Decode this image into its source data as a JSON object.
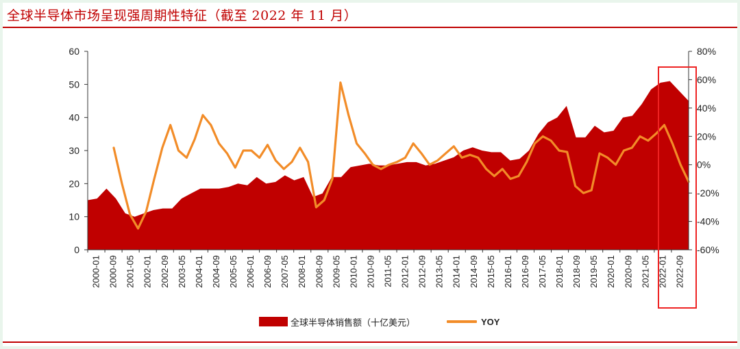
{
  "title": "全球半导体市场呈现强周期性特征（截至 2022 年 11 月）",
  "colors": {
    "area": "#c00000",
    "line": "#f28c28",
    "highlight": "#ee2222",
    "title": "#c00000"
  },
  "chart_data": {
    "type": "area",
    "title": "全球半导体市场呈现强周期性特征（截至 2022 年 11 月）",
    "left_axis": {
      "ylim": [
        0,
        60
      ],
      "ticks": [
        "0",
        "10",
        "20",
        "30",
        "40",
        "50",
        "60"
      ]
    },
    "right_axis": {
      "ylim": [
        -60,
        80
      ],
      "ticks": [
        "-60%",
        "-40%",
        "-20%",
        "0%",
        "20%",
        "40%",
        "60%",
        "80%"
      ]
    },
    "x_tick_labels": [
      "2000-01",
      "2000-09",
      "2001-05",
      "2002-01",
      "2002-09",
      "2003-05",
      "2004-01",
      "2004-09",
      "2005-05",
      "2006-01",
      "2006-09",
      "2007-05",
      "2008-01",
      "2008-09",
      "2009-05",
      "2010-01",
      "2010-09",
      "2011-05",
      "2012-01",
      "2012-09",
      "2013-05",
      "2014-01",
      "2014-09",
      "2015-05",
      "2016-01",
      "2016-09",
      "2017-05",
      "2018-01",
      "2018-09",
      "2019-05",
      "2020-01",
      "2020-09",
      "2021-05",
      "2022-01",
      "2022-09"
    ],
    "legend": [
      {
        "name": "全球半导体销售额（十亿美元）",
        "kind": "area"
      },
      {
        "name": "YOY",
        "kind": "line"
      }
    ],
    "legend_position": "bottom",
    "series": [
      {
        "name": "全球半导体销售额（十亿美元）",
        "axis": "left",
        "kind": "area",
        "values": [
          15.0,
          15.5,
          18.5,
          15.5,
          11.0,
          10.0,
          11.0,
          12.0,
          12.5,
          12.5,
          15.5,
          17.0,
          18.5,
          18.5,
          18.5,
          19.0,
          20.0,
          19.5,
          22.0,
          20.0,
          20.5,
          22.5,
          21.0,
          22.0,
          16.0,
          17.0,
          22.0,
          22.0,
          25.0,
          25.5,
          26.0,
          25.5,
          25.5,
          26.0,
          26.5,
          26.5,
          25.5,
          26.0,
          27.0,
          28.0,
          30.0,
          31.0,
          30.0,
          29.5,
          29.5,
          27.0,
          27.5,
          30.0,
          35.0,
          38.5,
          40.0,
          43.5,
          34.0,
          34.0,
          37.5,
          35.5,
          36.0,
          40.0,
          40.5,
          44.0,
          48.5,
          50.5,
          51.0,
          48.0,
          45.0
        ]
      },
      {
        "name": "YOY",
        "axis": "right",
        "kind": "line",
        "values": [
          12,
          -13,
          -35,
          -45,
          -33,
          -10,
          12,
          28,
          10,
          5,
          18,
          35,
          28,
          15,
          8,
          -2,
          10,
          10,
          5,
          14,
          3,
          -3,
          2,
          12,
          2,
          -30,
          -25,
          -10,
          58,
          35,
          15,
          8,
          0,
          -3,
          0,
          2,
          5,
          15,
          8,
          0,
          3,
          8,
          13,
          5,
          7,
          5,
          -3,
          -8,
          -3,
          -10,
          -8,
          2,
          15,
          20,
          17,
          10,
          9,
          -15,
          -20,
          -18,
          8,
          5,
          0,
          10,
          12,
          20,
          17,
          22,
          28,
          15,
          0,
          -12
        ]
      }
    ]
  }
}
